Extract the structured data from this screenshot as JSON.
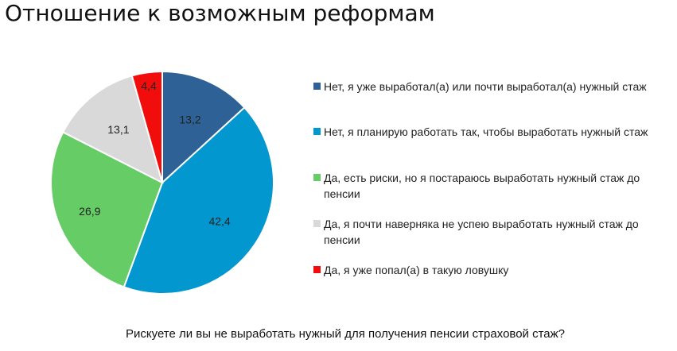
{
  "title": "Отношение к возможным реформам",
  "question": "Рискуете ли вы не выработать нужный для получения пенсии страховой стаж?",
  "chart_data": {
    "type": "pie",
    "title": "Отношение к возможным реформам",
    "start_angle_deg": 0,
    "direction": "clockwise",
    "legend_position": "right",
    "slices": [
      {
        "label": "Нет, я уже выработал(а) или почти выработал(а) нужный стаж",
        "value": 13.2,
        "display": "13,2",
        "color": "#2E6296"
      },
      {
        "label": "Нет, я планирую работать так, чтобы выработать нужный стаж",
        "value": 42.4,
        "display": "42,4",
        "color": "#0397CF"
      },
      {
        "label": "Да, есть риски, но я постараюсь выработать нужный стаж до пенсии",
        "value": 26.9,
        "display": "26,9",
        "color": "#66CC66"
      },
      {
        "label": "Да, я почти наверняка не успею выработать нужный стаж до пенсии",
        "value": 13.1,
        "display": "13,1",
        "color": "#D9D9D9"
      },
      {
        "label": "Да, я уже попал(а) в такую ловушку",
        "value": 4.4,
        "display": "4,4",
        "color": "#F20D0D"
      }
    ]
  }
}
